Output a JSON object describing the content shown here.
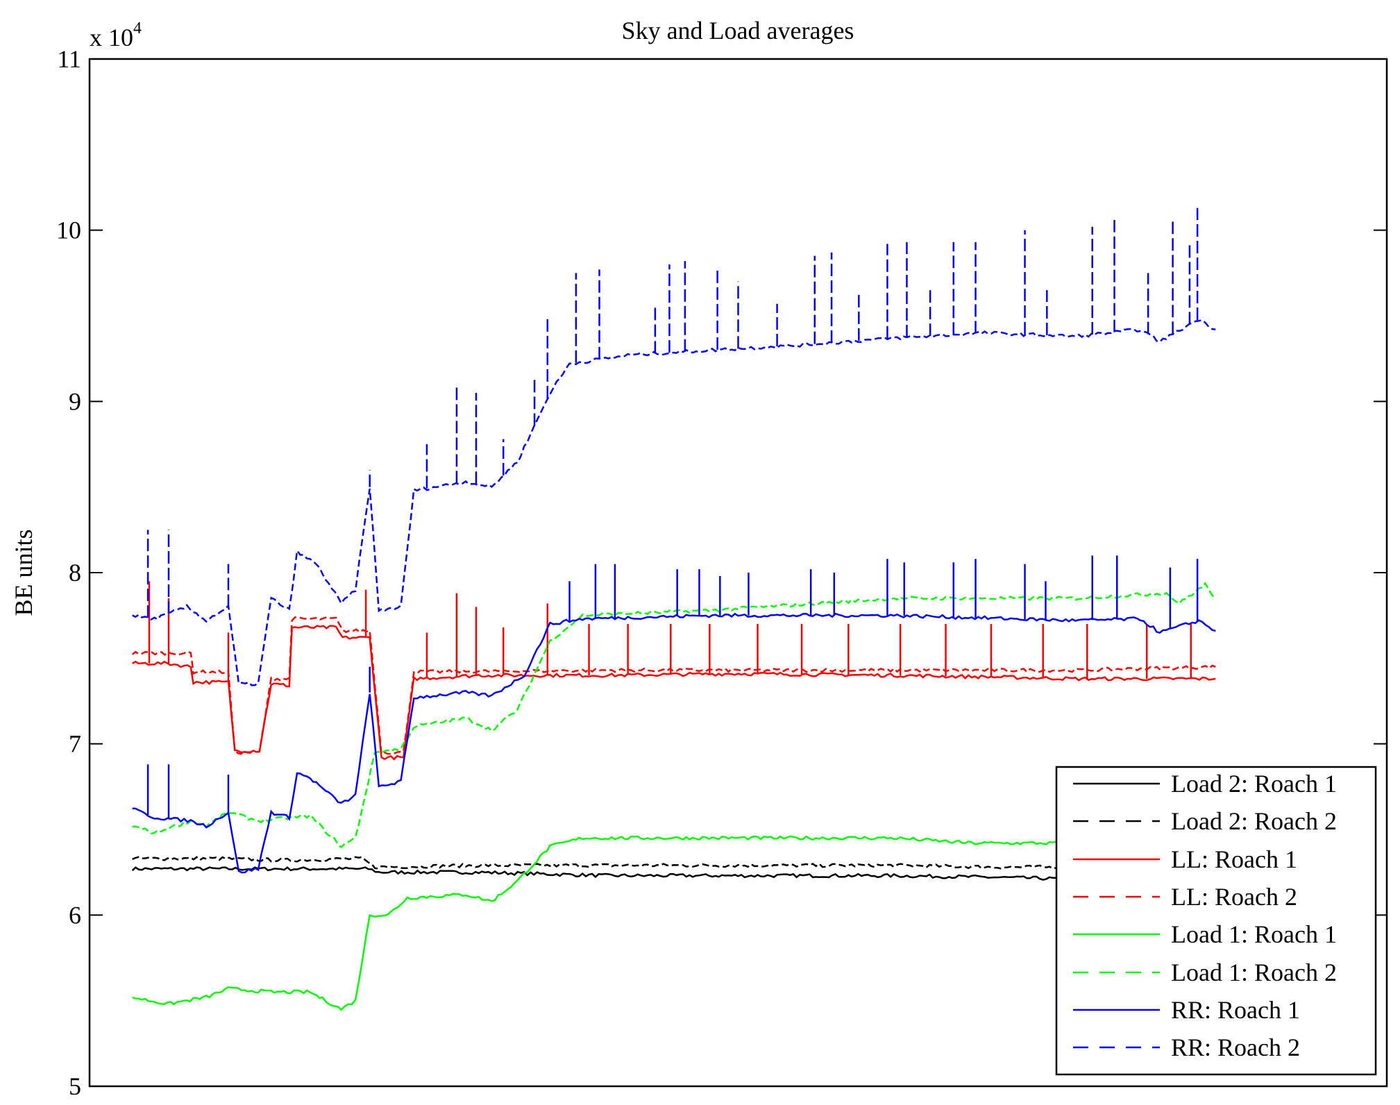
{
  "chart_data": {
    "type": "line",
    "title": "Sky and Load averages",
    "xlabel": "",
    "ylabel": "BE units",
    "y_exponent_base": "x 10",
    "y_exponent_power": "4",
    "xlim": [
      0,
      100
    ],
    "ylim": [
      5,
      11
    ],
    "yticks": [
      5,
      6,
      7,
      8,
      9,
      10,
      11
    ],
    "ytick_labels": [
      "5",
      "6",
      "7",
      "8",
      "9",
      "10",
      "11"
    ],
    "grid": false,
    "legend_position": "bottom-right",
    "series": [
      {
        "name": "Load 2: Roach 1",
        "color": "#000000",
        "dashed": false,
        "points": [
          [
            3.3,
            6.27
          ],
          [
            10,
            6.27
          ],
          [
            15,
            6.27
          ],
          [
            21.5,
            6.27
          ],
          [
            22.3,
            6.25
          ],
          [
            30,
            6.25
          ],
          [
            40,
            6.23
          ],
          [
            50,
            6.23
          ],
          [
            62,
            6.23
          ],
          [
            70,
            6.22
          ],
          [
            76,
            6.21
          ],
          [
            86.8,
            6.2
          ]
        ],
        "spikes": []
      },
      {
        "name": "Load 2: Roach 2",
        "color": "#000000",
        "dashed": true,
        "points": [
          [
            3.3,
            6.33
          ],
          [
            10,
            6.33
          ],
          [
            15,
            6.32
          ],
          [
            21,
            6.33
          ],
          [
            22,
            6.28
          ],
          [
            30,
            6.29
          ],
          [
            40,
            6.29
          ],
          [
            50,
            6.29
          ],
          [
            62,
            6.29
          ],
          [
            70,
            6.28
          ],
          [
            76,
            6.28
          ],
          [
            86.8,
            6.27
          ]
        ],
        "spikes": []
      },
      {
        "name": "LL: Roach 1",
        "color": "#ff0000",
        "dashed": false,
        "points": [
          [
            3.3,
            7.47
          ],
          [
            6,
            7.47
          ],
          [
            7.8,
            7.45
          ],
          [
            8,
            7.36
          ],
          [
            10.7,
            7.36
          ],
          [
            11.2,
            6.96
          ],
          [
            13.1,
            6.96
          ],
          [
            14,
            7.35
          ],
          [
            15.4,
            7.34
          ],
          [
            15.6,
            7.68
          ],
          [
            19,
            7.68
          ],
          [
            19.5,
            7.62
          ],
          [
            21.6,
            7.62
          ],
          [
            22.5,
            6.92
          ],
          [
            24.2,
            6.92
          ],
          [
            25,
            7.38
          ],
          [
            30,
            7.4
          ],
          [
            40,
            7.4
          ],
          [
            50,
            7.41
          ],
          [
            62,
            7.4
          ],
          [
            70,
            7.39
          ],
          [
            76,
            7.38
          ],
          [
            86.8,
            7.38
          ]
        ],
        "spikes": [
          [
            4.6,
            7.95
          ],
          [
            6.1,
            7.85
          ],
          [
            10.7,
            7.65
          ],
          [
            21.3,
            7.9
          ],
          [
            26,
            7.65
          ],
          [
            28.3,
            7.88
          ],
          [
            29.8,
            7.8
          ],
          [
            31.9,
            7.68
          ],
          [
            35.3,
            7.82
          ],
          [
            38.5,
            7.7
          ],
          [
            41.5,
            7.7
          ],
          [
            44.8,
            7.7
          ],
          [
            47.8,
            7.7
          ],
          [
            51.5,
            7.7
          ],
          [
            54.9,
            7.7
          ],
          [
            58.5,
            7.7
          ],
          [
            62.5,
            7.7
          ],
          [
            66,
            7.7
          ],
          [
            69.5,
            7.7
          ],
          [
            73.5,
            7.7
          ],
          [
            76.9,
            7.7
          ],
          [
            81.5,
            7.7
          ],
          [
            84.9,
            7.7
          ]
        ]
      },
      {
        "name": "LL: Roach 2",
        "color": "#ff0000",
        "dashed": true,
        "points": [
          [
            3.3,
            7.53
          ],
          [
            7.8,
            7.53
          ],
          [
            8,
            7.42
          ],
          [
            10.7,
            7.42
          ],
          [
            11.2,
            6.95
          ],
          [
            13.1,
            6.95
          ],
          [
            14,
            7.38
          ],
          [
            15.4,
            7.38
          ],
          [
            15.6,
            7.73
          ],
          [
            19,
            7.73
          ],
          [
            19.5,
            7.66
          ],
          [
            21.6,
            7.66
          ],
          [
            22.5,
            6.95
          ],
          [
            24.2,
            6.95
          ],
          [
            25,
            7.42
          ],
          [
            40,
            7.43
          ],
          [
            62,
            7.43
          ],
          [
            76,
            7.43
          ],
          [
            86.8,
            7.45
          ]
        ],
        "spikes": []
      },
      {
        "name": "Load 1: Roach 1",
        "color": "#00ff00",
        "dashed": false,
        "points": [
          [
            3.3,
            5.52
          ],
          [
            6,
            5.48
          ],
          [
            9,
            5.52
          ],
          [
            10.7,
            5.57
          ],
          [
            14,
            5.55
          ],
          [
            17,
            5.55
          ],
          [
            19.4,
            5.45
          ],
          [
            20.5,
            5.5
          ],
          [
            21.6,
            6.0
          ],
          [
            23,
            6.0
          ],
          [
            24.5,
            6.1
          ],
          [
            29,
            6.12
          ],
          [
            31,
            6.08
          ],
          [
            33,
            6.2
          ],
          [
            35.5,
            6.4
          ],
          [
            38,
            6.45
          ],
          [
            50,
            6.45
          ],
          [
            62,
            6.45
          ],
          [
            68,
            6.42
          ],
          [
            76,
            6.42
          ],
          [
            86.8,
            6.4
          ]
        ],
        "spikes": []
      },
      {
        "name": "Load 1: Roach 2",
        "color": "#00ff00",
        "dashed": true,
        "points": [
          [
            3.3,
            6.52
          ],
          [
            5,
            6.48
          ],
          [
            7.8,
            6.55
          ],
          [
            9,
            6.52
          ],
          [
            10.7,
            6.6
          ],
          [
            13,
            6.55
          ],
          [
            17,
            6.58
          ],
          [
            19.4,
            6.4
          ],
          [
            20.5,
            6.45
          ],
          [
            22,
            6.95
          ],
          [
            24,
            6.97
          ],
          [
            25,
            7.1
          ],
          [
            29,
            7.15
          ],
          [
            31,
            7.08
          ],
          [
            33,
            7.2
          ],
          [
            35.5,
            7.6
          ],
          [
            38,
            7.75
          ],
          [
            48,
            7.78
          ],
          [
            62,
            7.85
          ],
          [
            76,
            7.85
          ],
          [
            83,
            7.88
          ],
          [
            84,
            7.82
          ],
          [
            86,
            7.93
          ],
          [
            86.8,
            7.85
          ]
        ],
        "spikes": []
      },
      {
        "name": "RR: Roach 1",
        "color": "#0000ff",
        "dashed": false,
        "points": [
          [
            3.3,
            6.62
          ],
          [
            5,
            6.57
          ],
          [
            7.8,
            6.55
          ],
          [
            9,
            6.52
          ],
          [
            10.7,
            6.6
          ],
          [
            11.5,
            6.25
          ],
          [
            13,
            6.27
          ],
          [
            14,
            6.6
          ],
          [
            15.4,
            6.57
          ],
          [
            16,
            6.83
          ],
          [
            17,
            6.8
          ],
          [
            19.4,
            6.65
          ],
          [
            20.5,
            6.7
          ],
          [
            21.6,
            7.3
          ],
          [
            22.3,
            6.75
          ],
          [
            24,
            6.78
          ],
          [
            25,
            7.27
          ],
          [
            29,
            7.3
          ],
          [
            31,
            7.28
          ],
          [
            33.5,
            7.4
          ],
          [
            35.5,
            7.7
          ],
          [
            38,
            7.73
          ],
          [
            48,
            7.75
          ],
          [
            62,
            7.75
          ],
          [
            76,
            7.72
          ],
          [
            81,
            7.73
          ],
          [
            82.5,
            7.65
          ],
          [
            85.5,
            7.72
          ],
          [
            86.8,
            7.66
          ]
        ],
        "spikes": [
          [
            4.5,
            6.88
          ],
          [
            6.1,
            6.88
          ],
          [
            10.7,
            6.82
          ],
          [
            21.6,
            7.45
          ],
          [
            37,
            7.95
          ],
          [
            39,
            8.05
          ],
          [
            40.5,
            8.05
          ],
          [
            45.3,
            8.02
          ],
          [
            47,
            8.02
          ],
          [
            48.6,
            7.98
          ],
          [
            50.8,
            8.0
          ],
          [
            55.6,
            8.02
          ],
          [
            57.4,
            8.0
          ],
          [
            61.5,
            8.08
          ],
          [
            62.8,
            8.06
          ],
          [
            66.6,
            8.06
          ],
          [
            68.3,
            8.08
          ],
          [
            72.1,
            8.05
          ],
          [
            73.7,
            7.95
          ],
          [
            77.3,
            8.1
          ],
          [
            79.2,
            8.1
          ],
          [
            83.3,
            8.03
          ],
          [
            85.4,
            8.08
          ]
        ]
      },
      {
        "name": "RR: Roach 2",
        "color": "#0000ff",
        "dashed": true,
        "points": [
          [
            3.3,
            7.75
          ],
          [
            5,
            7.73
          ],
          [
            7.5,
            7.8
          ],
          [
            9,
            7.72
          ],
          [
            10.7,
            7.8
          ],
          [
            11.5,
            7.35
          ],
          [
            13,
            7.35
          ],
          [
            14,
            7.85
          ],
          [
            15.4,
            7.78
          ],
          [
            16,
            8.12
          ],
          [
            17.5,
            8.05
          ],
          [
            19.4,
            7.82
          ],
          [
            20.5,
            7.9
          ],
          [
            21.6,
            8.5
          ],
          [
            22.3,
            7.78
          ],
          [
            24,
            7.8
          ],
          [
            25,
            8.48
          ],
          [
            29,
            8.53
          ],
          [
            31,
            8.5
          ],
          [
            33,
            8.65
          ],
          [
            35.5,
            9.05
          ],
          [
            37,
            9.22
          ],
          [
            41.5,
            9.27
          ],
          [
            48,
            9.3
          ],
          [
            55,
            9.33
          ],
          [
            62,
            9.37
          ],
          [
            69,
            9.4
          ],
          [
            76,
            9.38
          ],
          [
            81,
            9.42
          ],
          [
            82.5,
            9.35
          ],
          [
            85.5,
            9.48
          ],
          [
            86.8,
            9.42
          ]
        ],
        "spikes": [
          [
            4.5,
            8.25
          ],
          [
            6.1,
            8.25
          ],
          [
            10.7,
            8.05
          ],
          [
            21.6,
            8.6
          ],
          [
            26,
            8.75
          ],
          [
            28.3,
            9.1
          ],
          [
            29.8,
            9.05
          ],
          [
            31.9,
            8.78
          ],
          [
            34.3,
            9.15
          ],
          [
            35.3,
            9.5
          ],
          [
            37.5,
            9.75
          ],
          [
            39.3,
            9.77
          ],
          [
            43.6,
            9.55
          ],
          [
            44.7,
            9.8
          ],
          [
            45.9,
            9.82
          ],
          [
            48.4,
            9.78
          ],
          [
            50,
            9.7
          ],
          [
            53,
            9.57
          ],
          [
            55.9,
            9.85
          ],
          [
            57.2,
            9.87
          ],
          [
            59.3,
            9.63
          ],
          [
            61.5,
            9.92
          ],
          [
            63,
            9.93
          ],
          [
            64.8,
            9.66
          ],
          [
            66.6,
            9.93
          ],
          [
            68.3,
            9.93
          ],
          [
            72.1,
            10.0
          ],
          [
            73.8,
            9.65
          ],
          [
            77.3,
            10.02
          ],
          [
            79,
            10.06
          ],
          [
            81.6,
            9.75
          ],
          [
            83.5,
            10.05
          ],
          [
            84.8,
            9.93
          ],
          [
            85.4,
            10.13
          ]
        ]
      }
    ]
  }
}
